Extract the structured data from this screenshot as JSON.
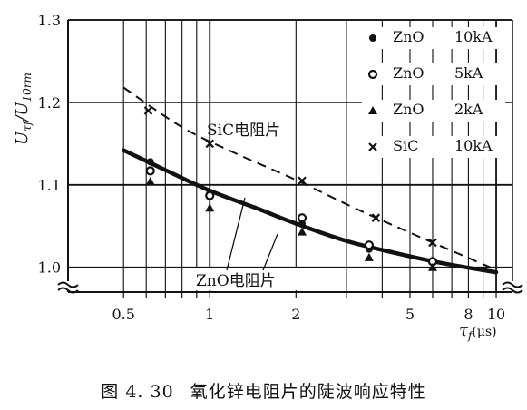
{
  "chart_data": {
    "type": "scatter",
    "x_scale": "log",
    "xlim": [
      0.32,
      11.4
    ],
    "ylim": [
      0.97,
      1.3
    ],
    "grid": true,
    "ylabel_main": "U",
    "ylabel_sub1": "τf",
    "ylabel_slash": "/U",
    "ylabel_sub2": "10rm",
    "xlabel_main": "τ",
    "xlabel_sub": "f",
    "xlabel_unit": "(μs)",
    "x_ticks": [
      {
        "value": 0.5,
        "label": "0.5"
      },
      {
        "value": 1,
        "label": "1"
      },
      {
        "value": 2,
        "label": "2"
      },
      {
        "value": 5,
        "label": "5"
      },
      {
        "value": 8,
        "label": "8"
      },
      {
        "value": 10,
        "label": "10"
      }
    ],
    "y_ticks": [
      {
        "value": 1.0,
        "label": "1.0"
      },
      {
        "value": 1.1,
        "label": "1.1"
      },
      {
        "value": 1.2,
        "label": "1.2"
      },
      {
        "value": 1.3,
        "label": "1.3"
      }
    ],
    "legend": [
      {
        "marker": "dot",
        "name": "ZnO",
        "current": "10kA"
      },
      {
        "marker": "circle",
        "name": "ZnO",
        "current": "5kA"
      },
      {
        "marker": "triangle",
        "name": "ZnO",
        "current": "2kA"
      },
      {
        "marker": "cross",
        "name": "SiC",
        "current": "10kA"
      }
    ],
    "series": [
      {
        "name": "ZnO 10kA",
        "marker": "dot",
        "points": [
          [
            0.62,
            1.128
          ],
          [
            1.0,
            1.09
          ],
          [
            2.1,
            1.053
          ],
          [
            3.6,
            1.022
          ],
          [
            6.0,
            1.008
          ]
        ]
      },
      {
        "name": "ZnO 5kA",
        "marker": "circle",
        "points": [
          [
            0.62,
            1.117
          ],
          [
            1.0,
            1.087
          ],
          [
            2.1,
            1.06
          ],
          [
            3.6,
            1.027
          ],
          [
            6.0,
            1.007
          ]
        ]
      },
      {
        "name": "ZnO 2kA",
        "marker": "triangle",
        "points": [
          [
            0.62,
            1.104
          ],
          [
            1.0,
            1.072
          ],
          [
            2.1,
            1.043
          ],
          [
            3.6,
            1.012
          ],
          [
            6.0,
            1.0
          ]
        ]
      },
      {
        "name": "SiC 10kA",
        "marker": "cross",
        "points": [
          [
            0.61,
            1.19
          ],
          [
            1.0,
            1.15
          ],
          [
            2.1,
            1.105
          ],
          [
            3.8,
            1.06
          ],
          [
            6.0,
            1.03
          ]
        ]
      }
    ],
    "curves": [
      {
        "label": "SiC电阻片",
        "style": "dashed",
        "points": [
          [
            0.5,
            1.218
          ],
          [
            0.8,
            1.17
          ],
          [
            1.2,
            1.14
          ],
          [
            2.0,
            1.106
          ],
          [
            3.2,
            1.072
          ],
          [
            5.0,
            1.042
          ],
          [
            7.0,
            1.02
          ],
          [
            10.0,
            0.997
          ]
        ]
      },
      {
        "label": "ZnO电阻片",
        "style": "solid-thick",
        "points": [
          [
            0.5,
            1.142
          ],
          [
            0.7,
            1.118
          ],
          [
            1.0,
            1.093
          ],
          [
            1.5,
            1.07
          ],
          [
            2.0,
            1.053
          ],
          [
            3.0,
            1.032
          ],
          [
            4.5,
            1.017
          ],
          [
            6.5,
            1.005
          ],
          [
            10.0,
            0.994
          ]
        ]
      }
    ]
  },
  "caption": {
    "number": "图 4. 30",
    "text": "氧化锌电阻片的陡波响应特性"
  }
}
